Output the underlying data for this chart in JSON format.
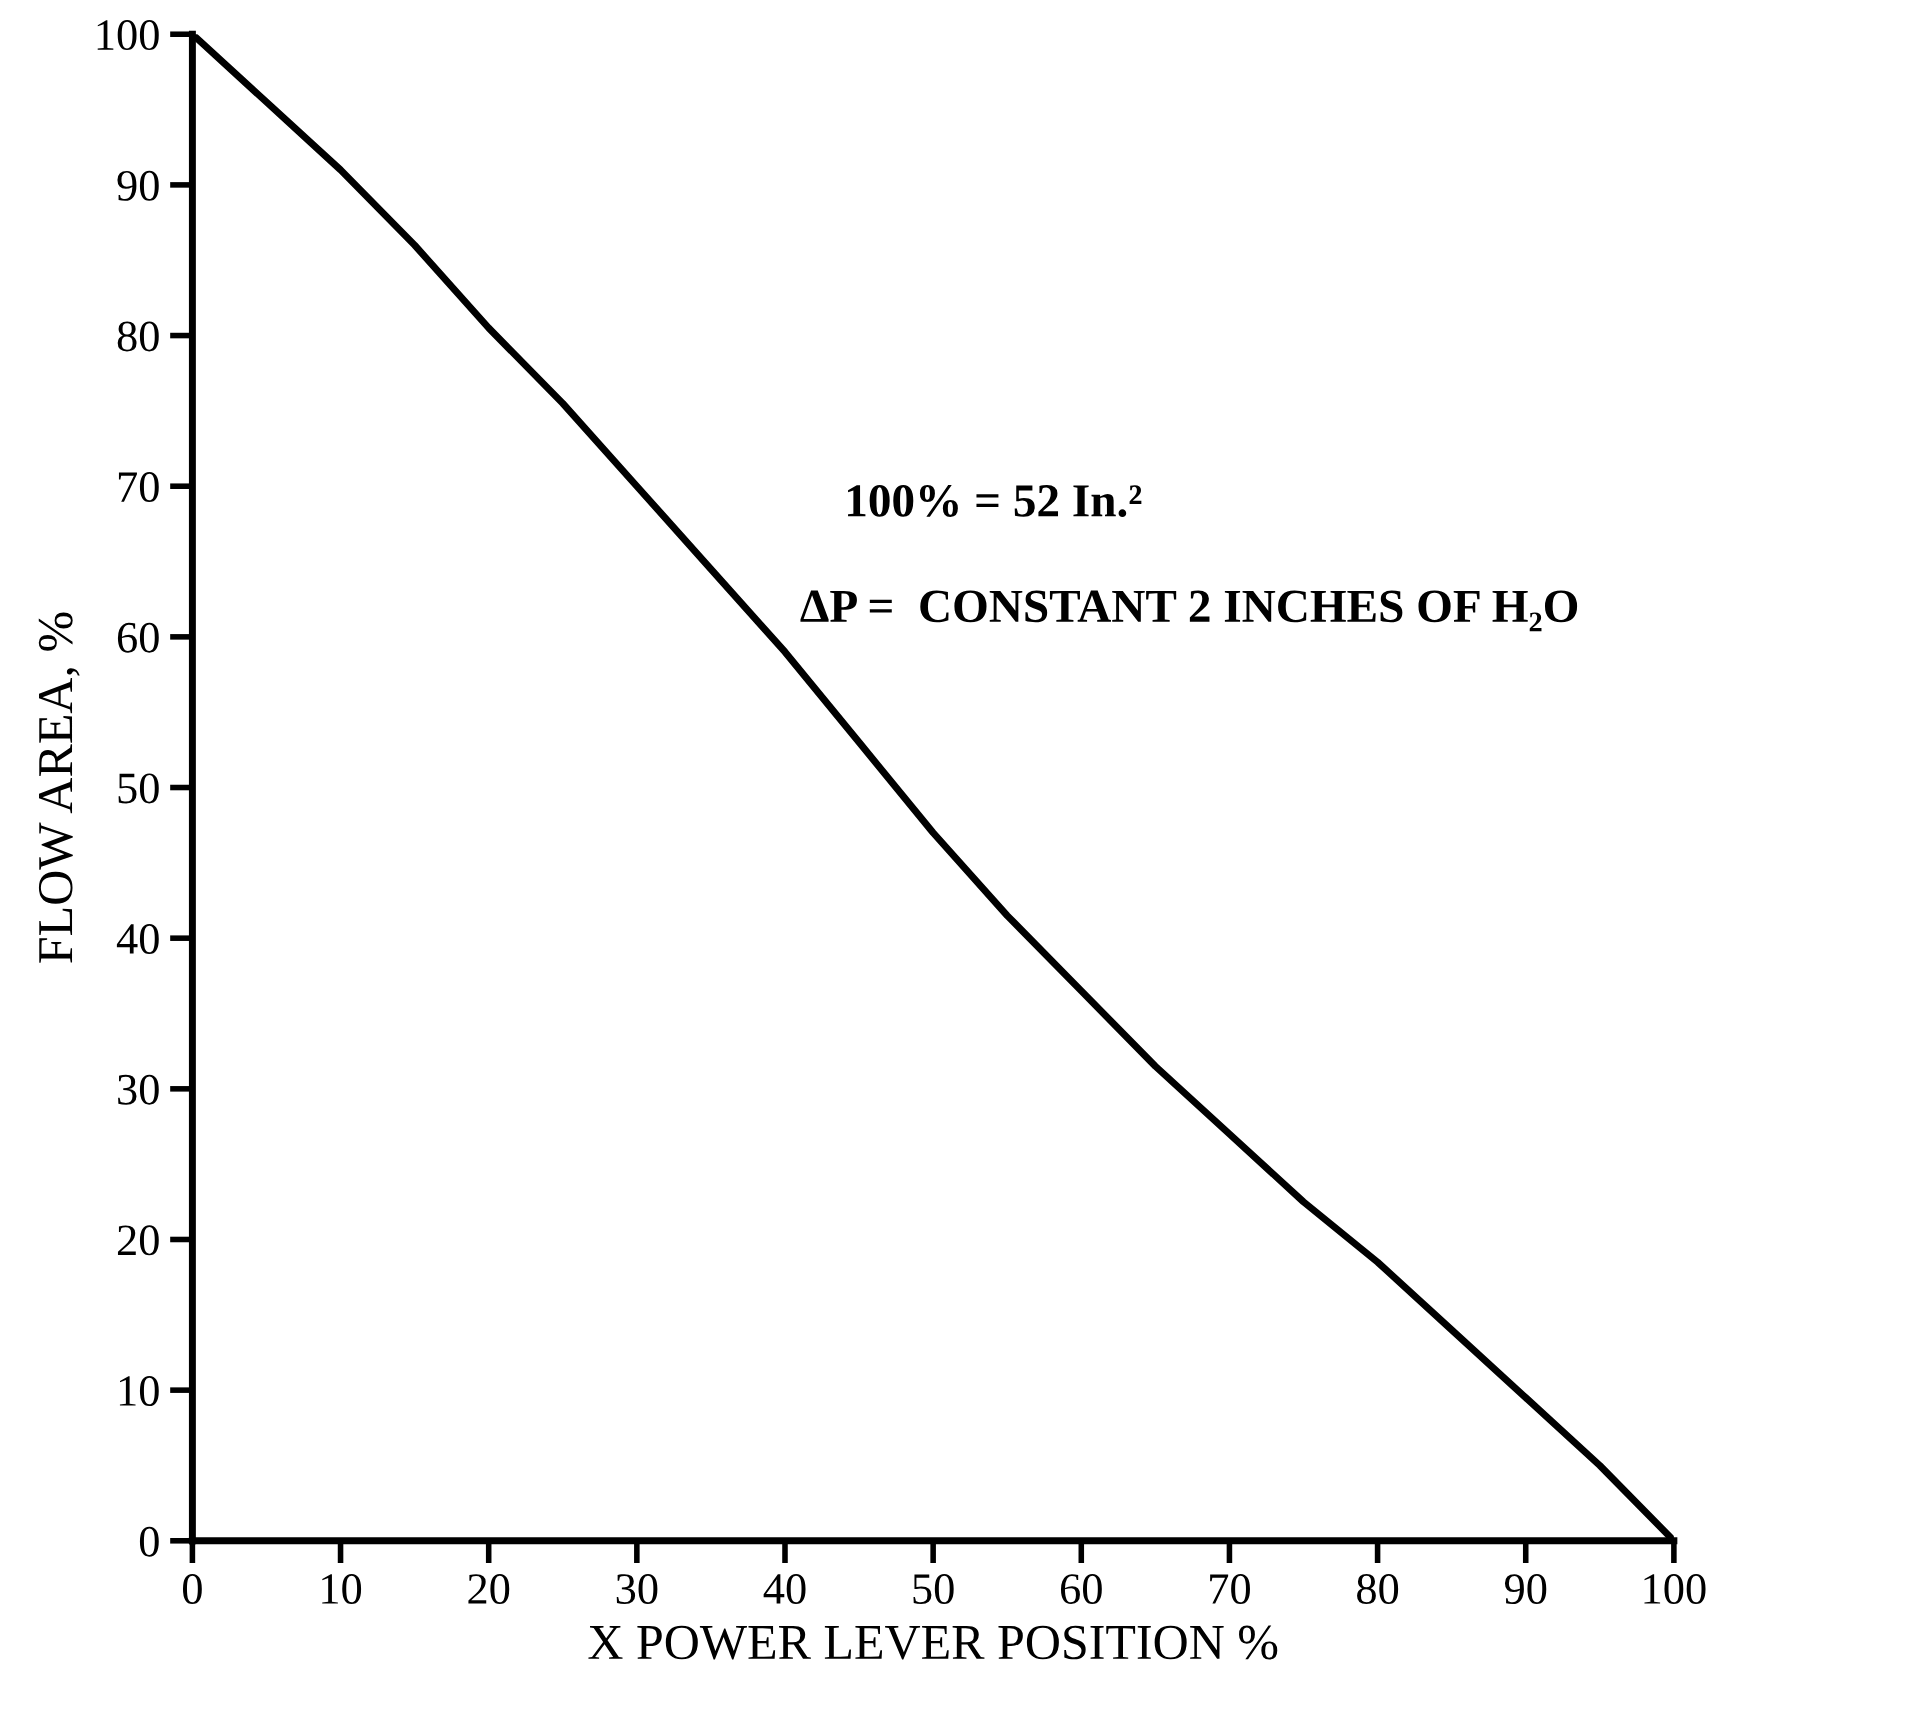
{
  "chart_data": {
    "type": "line",
    "xlabel": "X POWER LEVER POSITION %",
    "ylabel": "FLOW AREA, %",
    "x": [
      0,
      5,
      10,
      15,
      20,
      25,
      30,
      35,
      40,
      45,
      50,
      55,
      60,
      65,
      70,
      75,
      80,
      85,
      90,
      95,
      100
    ],
    "series": [
      {
        "color": "#000000",
        "values": [
          100,
          95.5,
          91,
          86,
          80.5,
          75.5,
          70,
          64.5,
          59,
          53,
          47,
          41.5,
          36.5,
          31.5,
          27,
          22.5,
          18.5,
          14,
          9.5,
          5,
          0
        ]
      }
    ],
    "xlim": [
      0,
      100
    ],
    "ylim": [
      0,
      100
    ],
    "xticks": [
      0,
      10,
      20,
      30,
      40,
      50,
      60,
      70,
      80,
      90,
      100
    ],
    "yticks": [
      0,
      10,
      20,
      30,
      40,
      50,
      60,
      70,
      80,
      90,
      100
    ],
    "grid": false,
    "legend": false,
    "marker": "none",
    "line_style": "solid",
    "annotations": [
      "100% = 52 In.²",
      "ΔP =  CONSTANT 2 INCHES OF H₂O"
    ]
  }
}
